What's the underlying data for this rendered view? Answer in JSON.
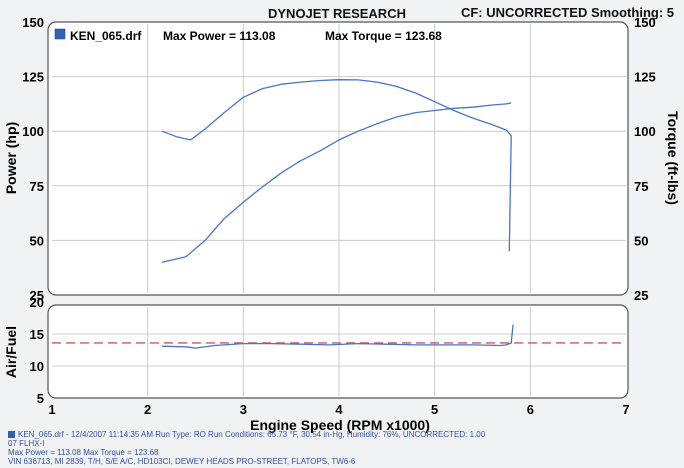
{
  "header": {
    "title": "DYNOJET RESEARCH",
    "cf_text": "CF: UNCORRECTED  Smoothing: 5"
  },
  "legend": {
    "file": "KEN_065.drf",
    "max_power_label": "Max Power = 113.08",
    "max_torque_label": "Max Torque = 123.68"
  },
  "footer": {
    "line1": "KEN_065.drf - 12/4/2007 11:14:35 AM  Run Type: RO  Run Conditions: 65.73 °F, 30.54 in-Hg, Humidity: 76%, UNCORRECTED: 1.00",
    "line2": "07 FLHX-I",
    "line3": "Max Power = 113.08  Max Torque = 123.68",
    "line4": "VIN 636713, MI 2839, T/H, S/E A/C, HD103CI, DEWEY HEADS PRO-STREET, FLATOPS, TW6-6"
  },
  "colors": {
    "background": "#f1f2f4",
    "panel": "#ffffff",
    "series": "#4a74c9",
    "afr_target": "#e05050",
    "legend_swatch": "#3060b8",
    "footer_text": "#3250a8"
  },
  "chart_data": [
    {
      "type": "line",
      "grid": true,
      "xlabel": "Engine Speed (RPM x1000)",
      "xlim": [
        1,
        7
      ],
      "xticks": [
        "1",
        "2",
        "3",
        "4",
        "5",
        "6",
        "7"
      ],
      "ylabel": "Power (hp)",
      "ylim": [
        25,
        150
      ],
      "yticks": [
        "25",
        "50",
        "75",
        "100",
        "125",
        "150"
      ],
      "y2label": "Torque (ft-lbs)",
      "y2lim": [
        25,
        150
      ],
      "y2ticks": [
        "25",
        "50",
        "75",
        "100",
        "125",
        "150"
      ],
      "series": [
        {
          "name": "Power",
          "axis": "left",
          "x": [
            2.15,
            2.4,
            2.6,
            2.8,
            3.0,
            3.2,
            3.4,
            3.6,
            3.8,
            4.0,
            4.2,
            4.4,
            4.6,
            4.8,
            5.0,
            5.2,
            5.4,
            5.6,
            5.75,
            5.8
          ],
          "y": [
            40,
            42.5,
            50,
            60,
            67.5,
            74.5,
            81,
            86.5,
            91,
            96,
            100,
            103.5,
            106.5,
            108.5,
            109.5,
            110.5,
            111,
            112,
            112.5,
            113
          ]
        },
        {
          "name": "Torque",
          "axis": "right",
          "x": [
            2.15,
            2.3,
            2.45,
            2.6,
            2.8,
            3.0,
            3.2,
            3.4,
            3.6,
            3.8,
            4.0,
            4.2,
            4.4,
            4.6,
            4.8,
            5.0,
            5.2,
            5.4,
            5.6,
            5.75,
            5.8,
            5.78
          ],
          "y": [
            100,
            97.5,
            96,
            101,
            108.5,
            115.5,
            119.5,
            121.5,
            122.5,
            123.2,
            123.6,
            123.5,
            122.5,
            120.5,
            117.5,
            113.5,
            109.5,
            106,
            103,
            100.5,
            98,
            45
          ]
        }
      ]
    },
    {
      "type": "line",
      "grid": true,
      "xlabel": "Engine Speed (RPM x1000)",
      "xlim": [
        1,
        7
      ],
      "xticks": [
        "1",
        "2",
        "3",
        "4",
        "5",
        "6",
        "7"
      ],
      "ylabel": "Air/Fuel",
      "ylim": [
        5,
        20
      ],
      "yticks": [
        "5",
        "10",
        "15",
        "20"
      ],
      "reference_line": 13.6,
      "series": [
        {
          "name": "Air/Fuel",
          "x": [
            2.15,
            2.4,
            2.5,
            2.7,
            3.0,
            3.3,
            3.6,
            3.9,
            4.2,
            4.5,
            4.8,
            5.1,
            5.4,
            5.7,
            5.75,
            5.8,
            5.82
          ],
          "y": [
            13.1,
            13.0,
            12.8,
            13.2,
            13.5,
            13.5,
            13.4,
            13.3,
            13.5,
            13.4,
            13.3,
            13.3,
            13.3,
            13.2,
            13.3,
            13.6,
            16.5
          ]
        }
      ]
    }
  ]
}
